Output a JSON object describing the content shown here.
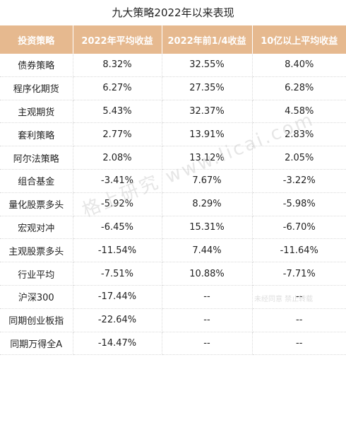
{
  "title": "九大策略2022年以来表现",
  "headers": [
    "投资策略",
    "2022年平均收益",
    "2022年前1/4收益",
    "10亿以上平均收益"
  ],
  "rows": [
    [
      "债券策略",
      "8.32%",
      "32.55%",
      "8.40%"
    ],
    [
      "程序化期货",
      "6.27%",
      "27.35%",
      "6.28%"
    ],
    [
      "主观期货",
      "5.43%",
      "32.37%",
      "4.58%"
    ],
    [
      "套利策略",
      "2.77%",
      "13.91%",
      "2.83%"
    ],
    [
      "阿尔法策略",
      "2.08%",
      "13.12%",
      "2.05%"
    ],
    [
      "组合基金",
      "-3.41%",
      "7.67%",
      "-3.22%"
    ],
    [
      "量化股票多头",
      "-5.92%",
      "8.29%",
      "-5.98%"
    ],
    [
      "宏观对冲",
      "-6.45%",
      "15.31%",
      "-6.70%"
    ],
    [
      "主观股票多头",
      "-11.54%",
      "7.44%",
      "-11.64%"
    ],
    [
      "行业平均",
      "-7.51%",
      "10.88%",
      "-7.71%"
    ],
    [
      "沪深300",
      "-17.44%",
      "--",
      "--"
    ],
    [
      "同期创业板指",
      "-22.64%",
      "--",
      "--"
    ],
    [
      "同期万得全A",
      "-14.47%",
      "--",
      "--"
    ]
  ],
  "watermark": "格上研究 www.licai.com",
  "stamp": "未经同意 禁止转载",
  "colors": {
    "header_bg": "#e6b98f",
    "header_text": "#ffffff",
    "text": "#222222"
  }
}
